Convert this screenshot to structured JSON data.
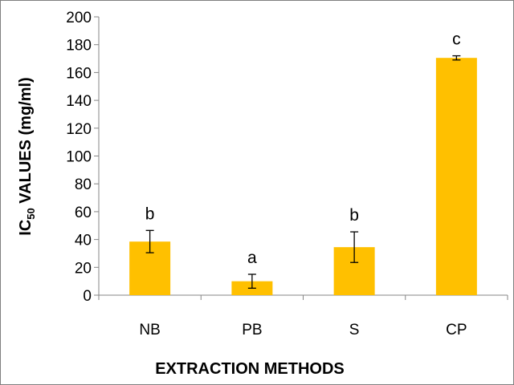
{
  "chart_data": {
    "type": "bar",
    "categories": [
      "NB",
      "PB",
      "S",
      "CP"
    ],
    "values": [
      38.5,
      10,
      34.5,
      170.5
    ],
    "errors": [
      8,
      5,
      11,
      1.5
    ],
    "significance_labels": [
      "b",
      "a",
      "b",
      "c"
    ],
    "xlabel": "EXTRACTION METHODS",
    "ylabel": {
      "main": "IC",
      "subscript": "50",
      "rest": " VALUES (mg/ml)"
    },
    "ylim": [
      0,
      200
    ],
    "yticks": [
      "0",
      "20",
      "40",
      "60",
      "80",
      "100",
      "120",
      "140",
      "160",
      "180",
      "200"
    ],
    "grid": false,
    "legend": "none",
    "bar_color": "#FFC000"
  }
}
